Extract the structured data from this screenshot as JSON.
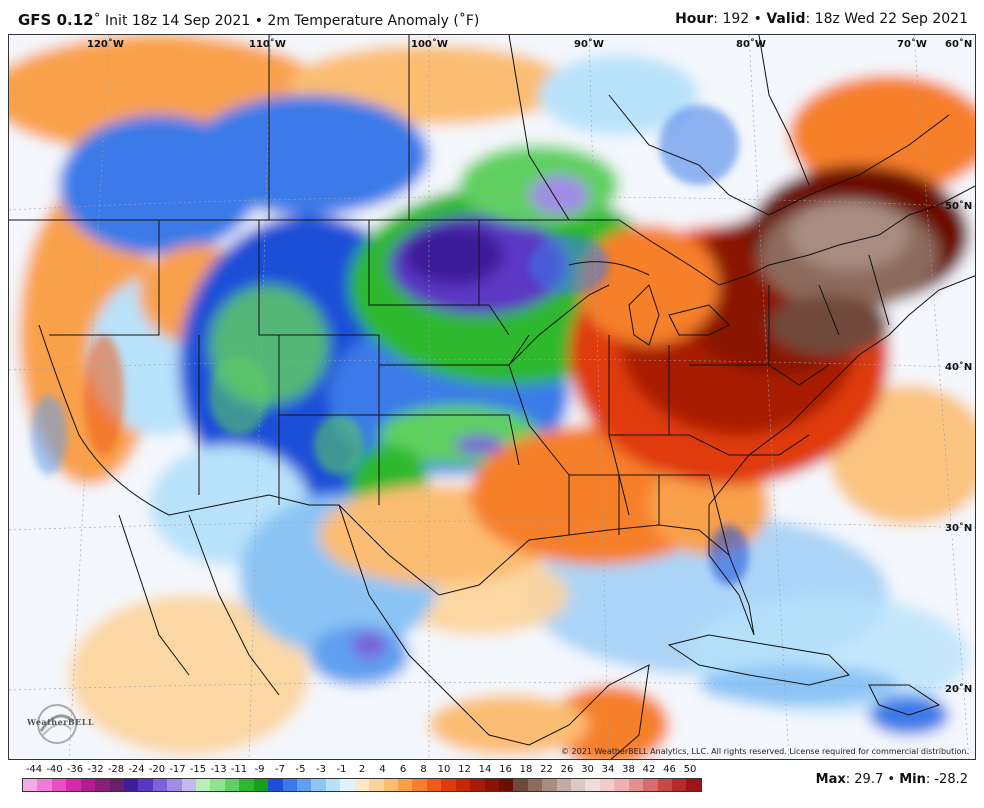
{
  "header": {
    "model": "GFS 0.12",
    "init": "Init 18z 14 Sep 2021",
    "product": "2m Temperature Anomaly (˚F)",
    "hour_label": "Hour",
    "hour_value": "192",
    "valid_label": "Valid",
    "valid_value": "18z Wed 22 Sep 2021"
  },
  "map": {
    "longitude_labels": [
      "120˚W",
      "110˚W",
      "100˚W",
      "90˚W",
      "80˚W",
      "70˚W",
      "60˚N"
    ],
    "latitude_labels": [
      "50˚N",
      "40˚N",
      "30˚N",
      "20˚N"
    ],
    "copyright": "© 2021 WeatherBELL Analytics, LLC. All rights reserved. License required for commercial distribution.",
    "logo": "WeatherBELL"
  },
  "legend": {
    "ticks": [
      "-44",
      "-40",
      "-36",
      "-32",
      "-28",
      "-24",
      "-20",
      "-17",
      "-15",
      "-13",
      "-11",
      "-9",
      "-7",
      "-5",
      "-3",
      "-1",
      "2",
      "4",
      "6",
      "8",
      "10",
      "12",
      "14",
      "16",
      "18",
      "22",
      "26",
      "30",
      "34",
      "38",
      "42",
      "46",
      "50"
    ],
    "colors": [
      "#f7a8e8",
      "#f27ad8",
      "#e94fc6",
      "#d62aac",
      "#b21c8f",
      "#8c1d7a",
      "#6a1f6b",
      "#3d1e9a",
      "#5b38c4",
      "#7b62d8",
      "#a08ce6",
      "#c4b8f0",
      "#b8f0b8",
      "#8fe38f",
      "#5fd05f",
      "#2fb82f",
      "#18a018",
      "#1f4fd8",
      "#3a7ae8",
      "#5fa0f0",
      "#8cc4f5",
      "#b8e2fa",
      "#dff3fd",
      "#fde7c6",
      "#fcd39a",
      "#fbbd72",
      "#f9a04c",
      "#f67f2c",
      "#ef5a18",
      "#df3a0c",
      "#c62806",
      "#a81c05",
      "#8a1404",
      "#6c0e03",
      "#6f4a3a",
      "#8c6a5c",
      "#a88c80",
      "#c4aca4",
      "#dcc8c4",
      "#efdcdc",
      "#f5cccc",
      "#eeb0b0",
      "#e58f8f",
      "#d86c6c",
      "#c84848",
      "#b52a2a",
      "#9f1414"
    ],
    "max_label": "Max",
    "max_value": "29.7",
    "min_label": "Min",
    "min_value": "-28.2"
  }
}
